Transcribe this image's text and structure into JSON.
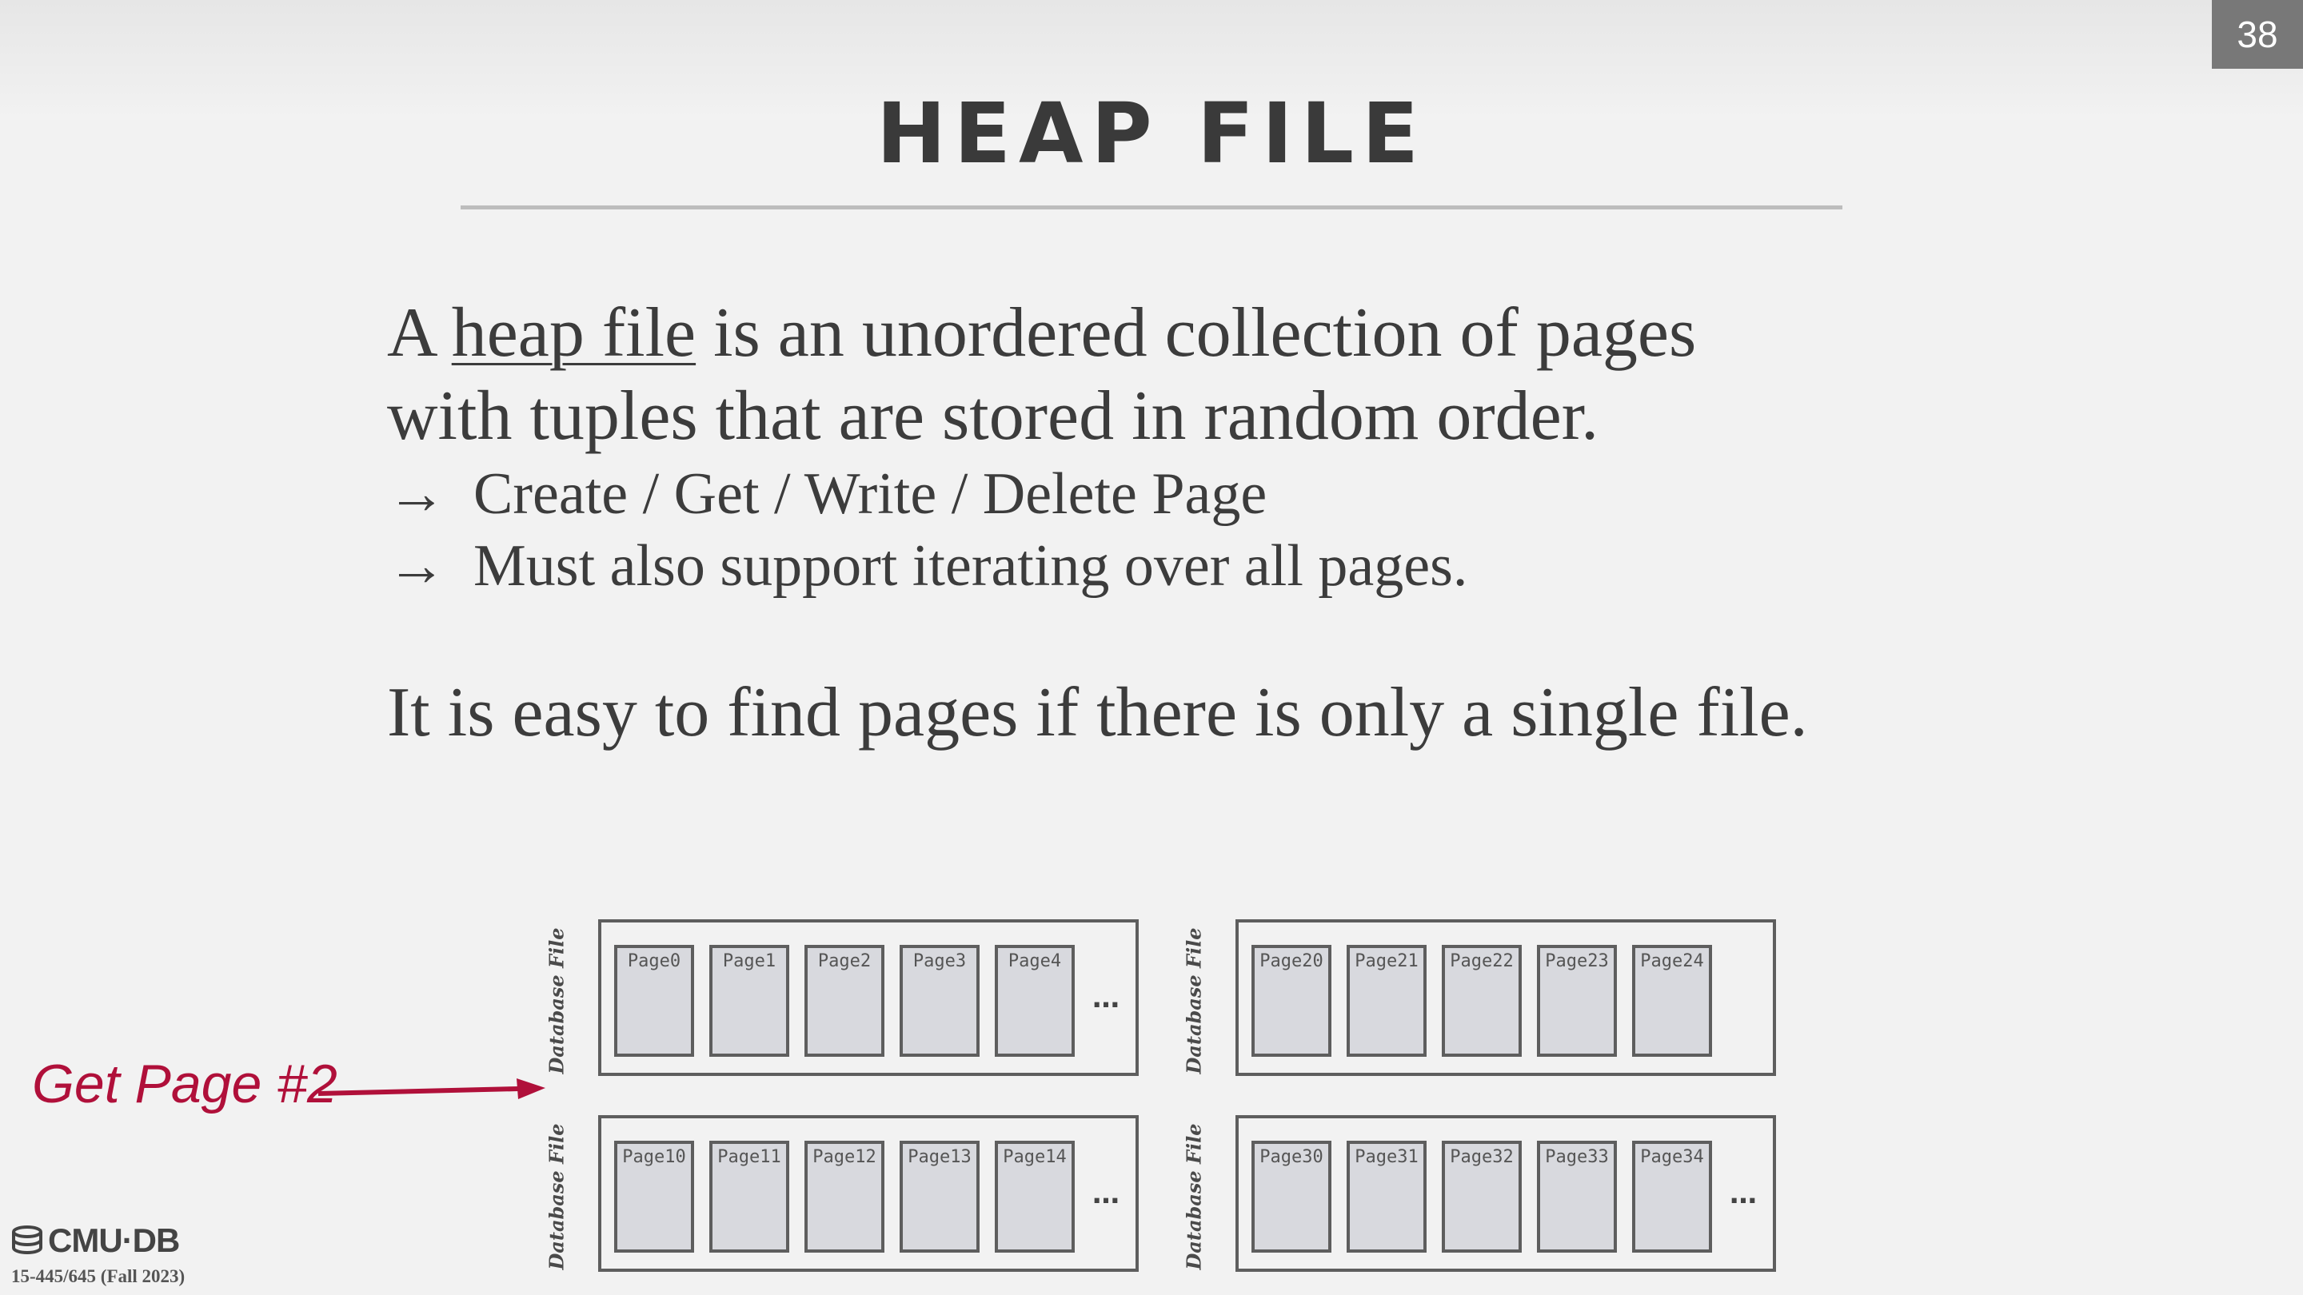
{
  "slide": {
    "number": "38",
    "title": "HEAP FILE",
    "paragraph1": {
      "prefix": "A ",
      "underlined": "heap file",
      "suffix": " is an unordered collection of pages",
      "line2": "with tuples that are stored in random order."
    },
    "bullets": [
      "Create / Get / Write / Delete Page",
      "Must also support iterating over all pages."
    ],
    "bullet_arrow": "→",
    "paragraph2": "It is easy to find pages if there is only a single file."
  },
  "diagram": {
    "file_label": "Database File",
    "ellipsis": "…",
    "files": [
      {
        "pages": [
          "Page0",
          "Page1",
          "Page2",
          "Page3",
          "Page4"
        ],
        "has_more": true
      },
      {
        "pages": [
          "Page20",
          "Page21",
          "Page22",
          "Page23",
          "Page24"
        ],
        "has_more": false
      },
      {
        "pages": [
          "Page10",
          "Page11",
          "Page12",
          "Page13",
          "Page14"
        ],
        "has_more": true
      },
      {
        "pages": [
          "Page30",
          "Page31",
          "Page32",
          "Page33",
          "Page34"
        ],
        "has_more": true
      }
    ],
    "request_label": "Get Page #2",
    "request_color": "#b0103a"
  },
  "footer": {
    "logo_text": "CMU·DB",
    "course": "15-445/645 (Fall 2023)"
  }
}
